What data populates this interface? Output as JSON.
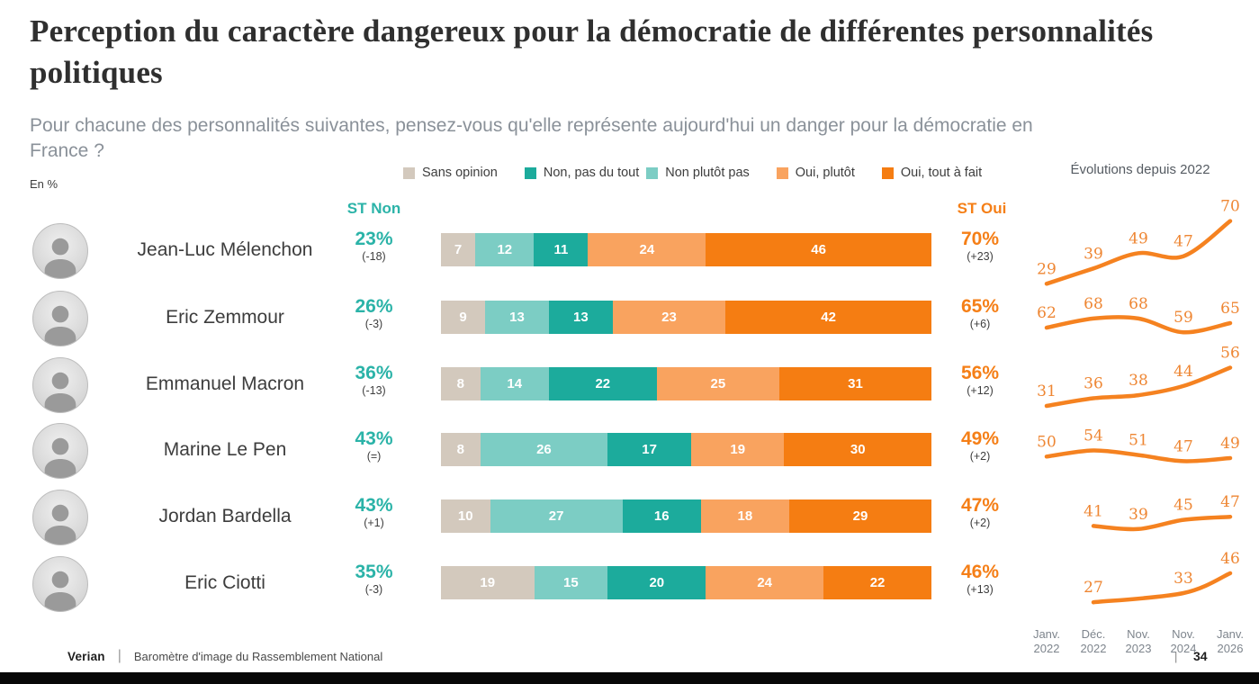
{
  "page": {
    "title": "Perception du caractère dangereux pour la démocratie de différentes personnalités politiques",
    "subtitle": "Pour chacune des personnalités suivantes, pensez-vous qu'elle représente aujourd'hui un danger pour la démocratie en France ?",
    "unit_label": "En %"
  },
  "colors": {
    "sans_opinion": "#d3c9bd",
    "non_pas_du_tout": "#1cab9c",
    "non_plutot_pas": "#7ccdc4",
    "oui_plutot": "#f9a35f",
    "oui_tout_a_fait": "#f57d12",
    "st_non_text": "#2bb3a8",
    "st_oui_text": "#f57f17",
    "trend_line": "#f58220",
    "trend_label": "#ee8633"
  },
  "legend": {
    "items": [
      {
        "key": "sans_opinion",
        "label": "Sans opinion"
      },
      {
        "key": "non_pas_du_tout",
        "label": "Non, pas du tout"
      },
      {
        "key": "non_plutot_pas",
        "label": "Non plutôt pas"
      },
      {
        "key": "oui_plutot",
        "label": "Oui, plutôt"
      },
      {
        "key": "oui_tout_a_fait",
        "label": "Oui, tout à fait"
      }
    ]
  },
  "columns": {
    "st_non": "ST Non",
    "st_oui": "ST Oui"
  },
  "trend": {
    "title": "Évolutions depuis 2022",
    "dates": [
      {
        "line1": "Janv.",
        "line2": "2022"
      },
      {
        "line1": "Déc.",
        "line2": "2022"
      },
      {
        "line1": "Nov.",
        "line2": "2023"
      },
      {
        "line1": "Nov.",
        "line2": "2024"
      },
      {
        "line1": "Janv.",
        "line2": "2026"
      }
    ]
  },
  "chart_data": {
    "type": "bar",
    "stacked": true,
    "orientation": "horizontal",
    "unit": "%",
    "categories": [
      "Jean-Luc Mélenchon",
      "Eric Zemmour",
      "Emmanuel Macron",
      "Marine Le Pen",
      "Jordan Bardella",
      "Eric Ciotti"
    ],
    "segment_order": [
      "sans_opinion",
      "non_plutot_pas",
      "non_pas_du_tout",
      "oui_plutot",
      "oui_tout_a_fait"
    ],
    "series": [
      {
        "key": "sans_opinion",
        "name": "Sans opinion",
        "values": [
          7,
          9,
          8,
          8,
          10,
          19
        ]
      },
      {
        "key": "non_plutot_pas",
        "name": "Non plutôt pas",
        "values": [
          12,
          13,
          14,
          26,
          27,
          15
        ]
      },
      {
        "key": "non_pas_du_tout",
        "name": "Non, pas du tout",
        "values": [
          11,
          13,
          22,
          17,
          16,
          20
        ]
      },
      {
        "key": "oui_plutot",
        "name": "Oui, plutôt",
        "values": [
          24,
          23,
          25,
          19,
          18,
          24
        ]
      },
      {
        "key": "oui_tout_a_fait",
        "name": "Oui, tout à fait",
        "values": [
          46,
          42,
          31,
          30,
          29,
          22
        ]
      }
    ],
    "st_non": [
      {
        "value": "23%",
        "delta": "(-18)"
      },
      {
        "value": "26%",
        "delta": "(-3)"
      },
      {
        "value": "36%",
        "delta": "(-13)"
      },
      {
        "value": "43%",
        "delta": "(=)"
      },
      {
        "value": "43%",
        "delta": "(+1)"
      },
      {
        "value": "35%",
        "delta": "(-3)"
      }
    ],
    "st_oui": [
      {
        "value": "70%",
        "delta": "(+23)"
      },
      {
        "value": "65%",
        "delta": "(+6)"
      },
      {
        "value": "56%",
        "delta": "(+12)"
      },
      {
        "value": "49%",
        "delta": "(+2)"
      },
      {
        "value": "47%",
        "delta": "(+2)"
      },
      {
        "value": "46%",
        "delta": "(+13)"
      }
    ],
    "trend_series": [
      {
        "name": "Jean-Luc Mélenchon",
        "values": [
          29,
          39,
          49,
          47,
          70
        ]
      },
      {
        "name": "Eric Zemmour",
        "values": [
          62,
          68,
          68,
          59,
          65
        ]
      },
      {
        "name": "Emmanuel Macron",
        "values": [
          31,
          36,
          38,
          44,
          56
        ]
      },
      {
        "name": "Marine Le Pen",
        "values": [
          50,
          54,
          51,
          47,
          49
        ]
      },
      {
        "name": "Jordan Bardella",
        "values": [
          null,
          41,
          39,
          45,
          47
        ]
      },
      {
        "name": "Eric Ciotti",
        "values": [
          null,
          27,
          null,
          33,
          46
        ]
      }
    ],
    "trend_x_labels": [
      "Janv. 2022",
      "Déc. 2022",
      "Nov. 2023",
      "Nov. 2024",
      "Janv. 2026"
    ]
  },
  "footer": {
    "brand": "Verian",
    "source": "Baromètre d'image du Rassemblement National",
    "page": "34"
  }
}
